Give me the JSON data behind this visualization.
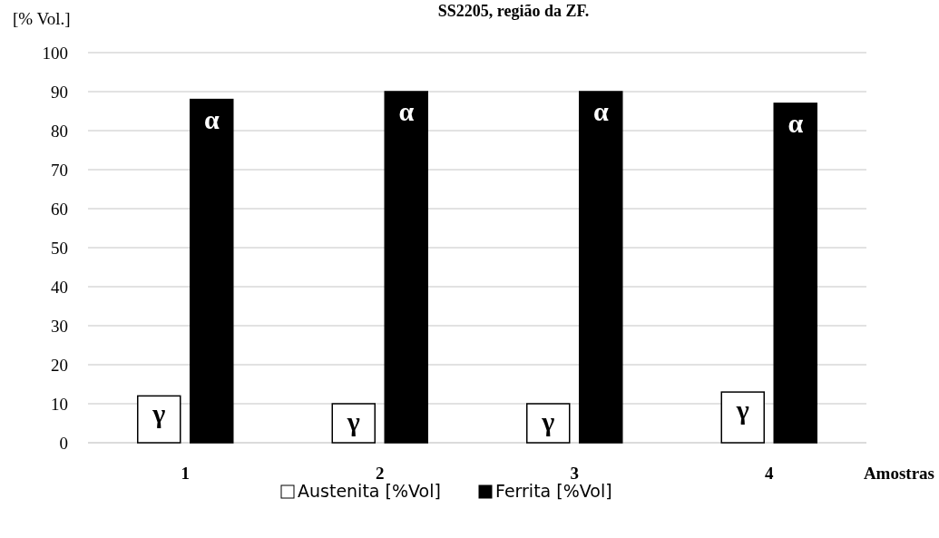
{
  "chart_data": {
    "type": "bar",
    "title": "SS2205, região da ZF.",
    "ylabel": "[% Vol.]",
    "xlabel": "Amostras",
    "categories": [
      "1",
      "2",
      "3",
      "4"
    ],
    "series": [
      {
        "name": "Austenita [%Vol]",
        "color": "#ffffff",
        "values": [
          12,
          10,
          10,
          13
        ]
      },
      {
        "name": "Ferrita [%Vol]",
        "color": "#000000",
        "values": [
          88,
          90,
          90,
          87
        ]
      }
    ],
    "ylim": [
      0,
      100
    ],
    "yticks": [
      0,
      10,
      20,
      30,
      40,
      50,
      60,
      70,
      80,
      90,
      100
    ],
    "grid": "y",
    "legend": "bottom",
    "annotations": [
      "γ",
      "α",
      "γ",
      "α",
      "γ",
      "α",
      "γ",
      "α"
    ]
  }
}
